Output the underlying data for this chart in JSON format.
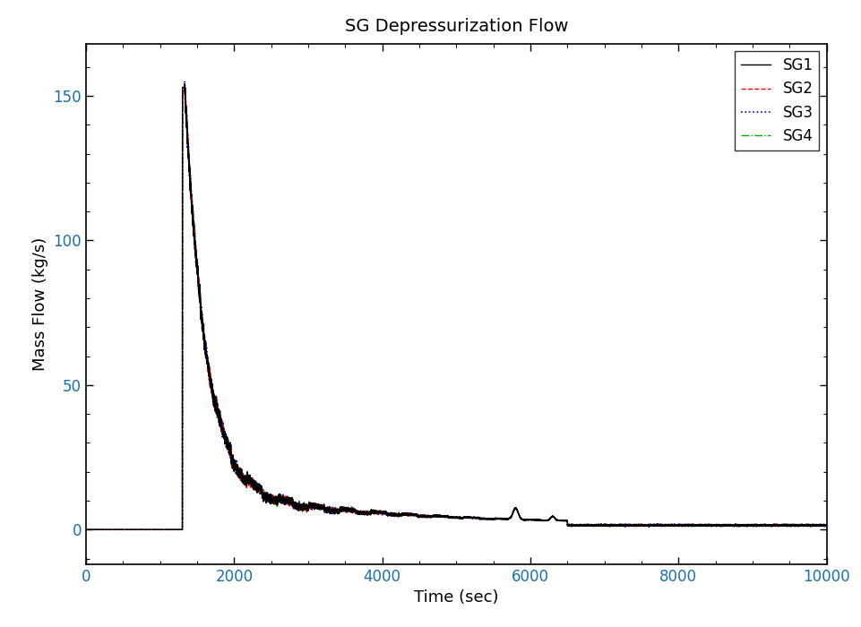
{
  "title": "SG Depressurization Flow",
  "xlabel": "Time (sec)",
  "ylabel": "Mass Flow (kg/s)",
  "xlim": [
    0,
    10000
  ],
  "ylim": [
    -12,
    168
  ],
  "yticks": [
    0,
    50,
    100,
    150
  ],
  "xticks": [
    0,
    2000,
    4000,
    6000,
    8000,
    10000
  ],
  "series": [
    {
      "name": "SG1",
      "color": "#000000",
      "linestyle": "-",
      "linewidth": 1.0,
      "zorder": 4
    },
    {
      "name": "SG2",
      "color": "#ff0000",
      "linestyle": "--",
      "linewidth": 1.0,
      "zorder": 3
    },
    {
      "name": "SG3",
      "color": "#0000ff",
      "linestyle": ":",
      "linewidth": 1.2,
      "zorder": 2
    },
    {
      "name": "SG4",
      "color": "#00aa00",
      "linestyle": "-.",
      "linewidth": 1.0,
      "zorder": 1
    }
  ],
  "legend_loc": "upper right",
  "title_fontsize": 14,
  "label_fontsize": 13,
  "tick_fontsize": 12,
  "tick_color": "#1a6faf",
  "background_color": "#ffffff",
  "spike_time": 1300,
  "spike_peak": 153,
  "figure_width": 9.61,
  "figure_height": 7.0,
  "dpi": 100
}
